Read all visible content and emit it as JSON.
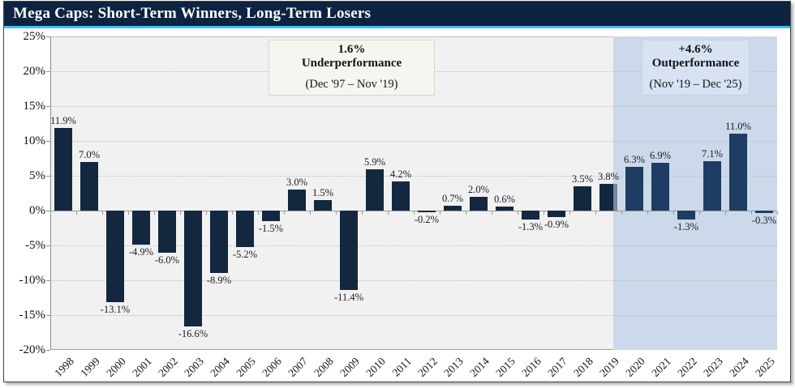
{
  "header": {
    "title": "Mega Caps: Short-Term Winners, Long-Term Losers"
  },
  "chart_data": {
    "type": "bar",
    "title": "Mega Caps: Short-Term Winners, Long-Term Losers",
    "xlabel": "",
    "ylabel": "",
    "ylim": [
      -20,
      25
    ],
    "ytick_step": 5,
    "ytick_values": [
      25,
      20,
      15,
      10,
      5,
      0,
      -5,
      -10,
      -15,
      -20
    ],
    "ytick_labels": [
      "25%",
      "20%",
      "15%",
      "10%",
      "5%",
      "0%",
      "-5%",
      "-10%",
      "-15%",
      "-20%"
    ],
    "grid": "horizontal-dotted",
    "legend": "none",
    "categories": [
      "1998",
      "1999",
      "2000",
      "2001",
      "2002",
      "2003",
      "2004",
      "2005",
      "2006",
      "2007",
      "2008",
      "2009",
      "2010",
      "2011",
      "2012",
      "2013",
      "2014",
      "2015",
      "2016",
      "2017",
      "2018",
      "2019",
      "2020",
      "2021",
      "2022",
      "2023",
      "2024",
      "2025"
    ],
    "values": [
      11.9,
      7.0,
      -13.1,
      -4.9,
      -6.0,
      -16.6,
      -8.9,
      -5.2,
      -1.5,
      3.0,
      1.5,
      -11.4,
      5.9,
      4.2,
      -0.2,
      0.7,
      2.0,
      0.6,
      -1.3,
      -0.9,
      3.5,
      3.8,
      6.3,
      6.9,
      -1.3,
      7.1,
      11.0,
      -0.3
    ],
    "data_labels": [
      "11.9%",
      "7.0%",
      "-13.1%",
      "-4.9%",
      "-6.0%",
      "-16.6%",
      "-8.9%",
      "-5.2%",
      "-1.5%",
      "3.0%",
      "1.5%",
      "-11.4%",
      "5.9%",
      "4.2%",
      "-0.2%",
      "0.7%",
      "2.0%",
      "0.6%",
      "-1.3%",
      "-0.9%",
      "3.5%",
      "3.8%",
      "6.3%",
      "6.9%",
      "-1.3%",
      "7.1%",
      "11.0%",
      "-0.3%"
    ],
    "periods": [
      "pre",
      "pre",
      "pre",
      "pre",
      "pre",
      "pre",
      "pre",
      "pre",
      "pre",
      "pre",
      "pre",
      "pre",
      "pre",
      "pre",
      "pre",
      "pre",
      "pre",
      "pre",
      "pre",
      "pre",
      "pre",
      "pre",
      "post",
      "post",
      "post",
      "post",
      "post",
      "post"
    ],
    "shaded_region": {
      "label": "Nov '19 – Dec '25",
      "start_slot": 21.7,
      "end_slot": 28
    }
  },
  "annotations": [
    {
      "headline": "1.6%",
      "subline": "Underperformance",
      "period": "(Dec '97 – Nov '19)"
    },
    {
      "headline": "+4.6%",
      "subline": "Outperformance",
      "period": "(Nov '19 – Dec '25)"
    }
  ],
  "colors": {
    "header_bg": "#0e2342",
    "accent_line": "#41c4ef",
    "bar_pre": "#13273f",
    "bar_post": "#1f3d63",
    "shading": "#cbd9ea",
    "plot_bg": "#f1f1f1",
    "annotation_pre_bg": "#f7f5ef",
    "annotation_post_bg": "#d8e3f2",
    "text": "#1c1c1c"
  }
}
